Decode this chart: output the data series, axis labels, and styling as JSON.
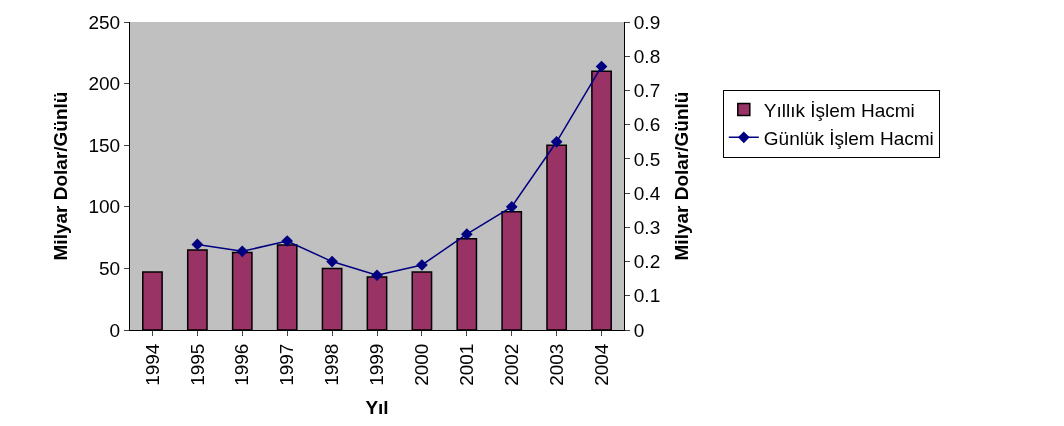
{
  "chart_data": {
    "type": "bar",
    "xlabel": "Yıl",
    "ylabel": "Milyar Dolar/Günlü",
    "y2label": "Milyar Dolar/Günlü",
    "categories": [
      "1994",
      "1995",
      "1996",
      "1997",
      "1998",
      "1999",
      "2000",
      "2001",
      "2002",
      "2003",
      "2004"
    ],
    "series": [
      {
        "name": "Yıllık İşlem Hacmi",
        "color": "#993366",
        "values": [
          47,
          65,
          63,
          69,
          50,
          43,
          47,
          74,
          96,
          150,
          210
        ]
      },
      {
        "name": "Günlük İşlem Hacmi",
        "type": "line",
        "axis": "y2",
        "color": "#000080",
        "marker": "diamond",
        "values": [
          null,
          0.25,
          0.23,
          0.26,
          0.2,
          0.16,
          0.19,
          0.28,
          0.36,
          0.55,
          0.77
        ]
      }
    ],
    "ylim": [
      0,
      250
    ],
    "yticks": [
      0,
      50,
      100,
      150,
      200,
      250
    ],
    "y2lim": [
      0,
      0.9
    ],
    "y2ticks": [
      0,
      0.1,
      0.2,
      0.3,
      0.4,
      0.5,
      0.6,
      0.7,
      0.8,
      0.9
    ],
    "grid": false,
    "legend": "right"
  }
}
